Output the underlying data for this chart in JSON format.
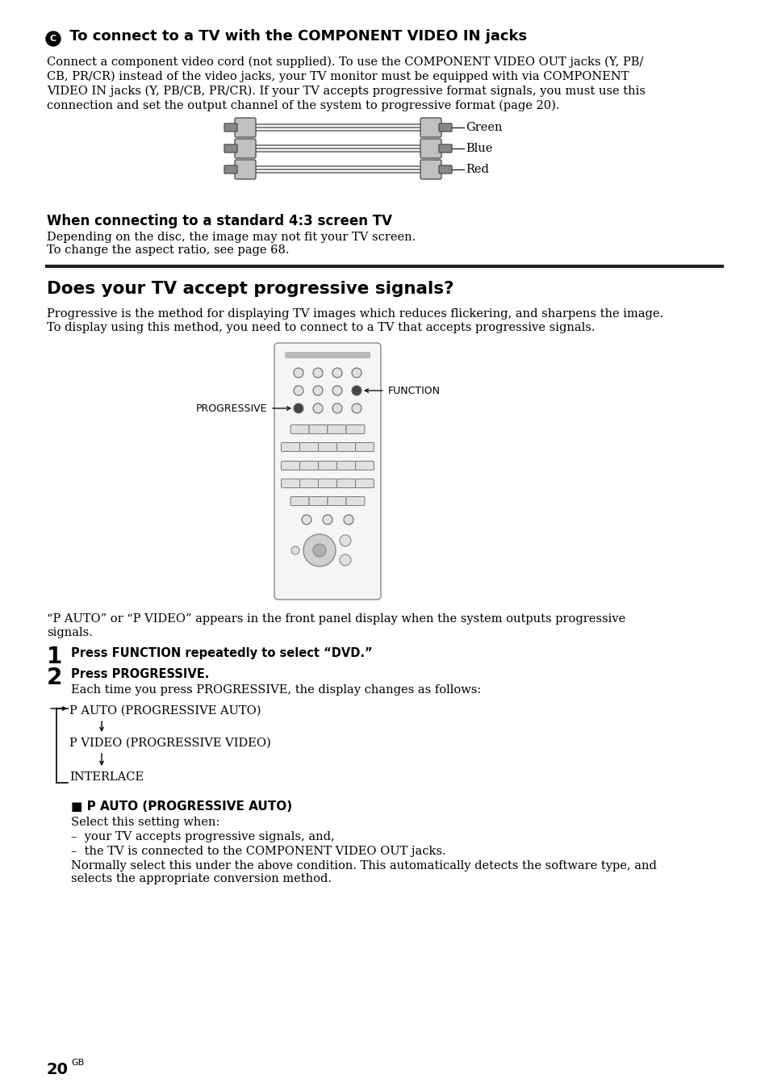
{
  "bg_color": "#ffffff",
  "text_color": "#000000",
  "section1_title_prefix": "C",
  "section1_title": " To connect to a TV with the COMPONENT VIDEO IN jacks",
  "section1_body_line1": "Connect a component video cord (not supplied). To use the COMPONENT VIDEO OUT jacks (Y, PB/",
  "section1_body_line2": "CB, PR/CR) instead of the video jacks, your TV monitor must be equipped with via COMPONENT",
  "section1_body_line3": "VIDEO IN jacks (Y, PB/CB, PR/CR). If your TV accepts progressive format signals, you must use this",
  "section1_body_line4": "connection and set the output channel of the system to progressive format (page 20).",
  "connector_labels": [
    "Green",
    "Blue",
    "Red"
  ],
  "subsection1_title": "When connecting to a standard 4:3 screen TV",
  "subsection1_body": "Depending on the disc, the image may not fit your TV screen.\nTo change the aspect ratio, see page 68.",
  "section2_title": "Does your TV accept progressive signals?",
  "section2_body": "Progressive is the method for displaying TV images which reduces flickering, and sharpens the image.\nTo display using this method, you need to connect to a TV that accepts progressive signals.",
  "remote_label_progressive": "PROGRESSIVE",
  "remote_label_function": "FUNCTION",
  "para_after_remote": "“P AUTO” or “P VIDEO” appears in the front panel display when the system outputs progressive\nsignals.",
  "step1_num": "1",
  "step1_text": "Press FUNCTION repeatedly to select “DVD.”",
  "step2_num": "2",
  "step2_bold": "Press PROGRESSIVE.",
  "step2_body": "Each time you press PROGRESSIVE, the display changes as follows:",
  "flow_items": [
    "P AUTO (PROGRESSIVE AUTO)",
    "P VIDEO (PROGRESSIVE VIDEO)",
    "INTERLACE"
  ],
  "pauto_heading": "■ P AUTO (PROGRESSIVE AUTO)",
  "pauto_body1": "Select this setting when:",
  "pauto_bullet1": "–  your TV accepts progressive signals, and,",
  "pauto_bullet2": "–  the TV is connected to the COMPONENT VIDEO OUT jacks.",
  "pauto_body2": "Normally select this under the above condition. This automatically detects the software type, and\nselects the appropriate conversion method.",
  "page_number": "20",
  "page_suffix": "GB"
}
